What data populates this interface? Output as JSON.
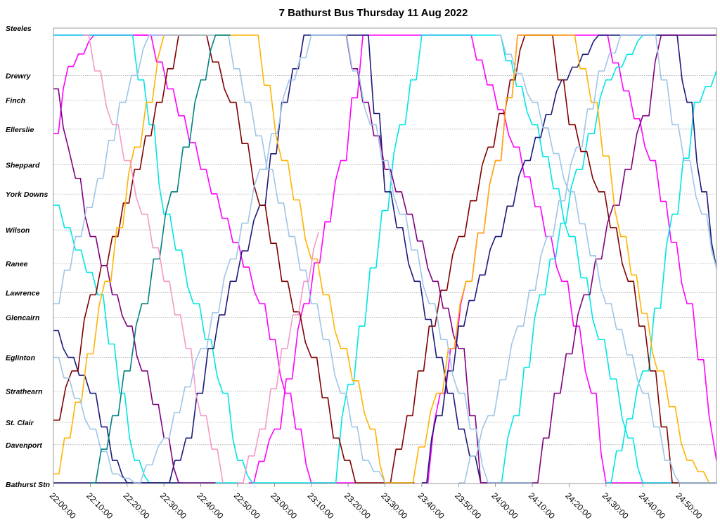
{
  "chart_data": {
    "type": "line",
    "title": "7 Bathurst Bus Thursday 11 Aug 2022",
    "xlabel": "",
    "ylabel": "",
    "x_unit": "minutes after 22:00",
    "xlim": [
      0,
      180
    ],
    "x_ticks": [
      {
        "value": 0,
        "label": "22:00:00"
      },
      {
        "value": 10,
        "label": "22:10:00"
      },
      {
        "value": 20,
        "label": "22:20:00"
      },
      {
        "value": 30,
        "label": "22:30:00"
      },
      {
        "value": 40,
        "label": "22:40:00"
      },
      {
        "value": 50,
        "label": "22:50:00"
      },
      {
        "value": 60,
        "label": "23:00:00"
      },
      {
        "value": 70,
        "label": "23:10:00"
      },
      {
        "value": 80,
        "label": "23:20:00"
      },
      {
        "value": 90,
        "label": "23:30:00"
      },
      {
        "value": 100,
        "label": "23:40:00"
      },
      {
        "value": 110,
        "label": "23:50:00"
      },
      {
        "value": 120,
        "label": "24:00:00"
      },
      {
        "value": 130,
        "label": "24:10:00"
      },
      {
        "value": 140,
        "label": "24:20:00"
      },
      {
        "value": 150,
        "label": "24:30:00"
      },
      {
        "value": 160,
        "label": "24:40:00"
      },
      {
        "value": 170,
        "label": "24:50:00"
      }
    ],
    "stops": [
      {
        "name": "Steeles",
        "pos": 100
      },
      {
        "name": "Drewry",
        "pos": 91
      },
      {
        "name": "Finch",
        "pos": 85.5
      },
      {
        "name": "Ellerslie",
        "pos": 79
      },
      {
        "name": "Sheppard",
        "pos": 71
      },
      {
        "name": "York Downs",
        "pos": 64.5
      },
      {
        "name": "Wilson",
        "pos": 56.5
      },
      {
        "name": "Ranee",
        "pos": 49
      },
      {
        "name": "Lawrence",
        "pos": 42.5
      },
      {
        "name": "Glencairn",
        "pos": 37
      },
      {
        "name": "Eglinton",
        "pos": 28
      },
      {
        "name": "Strathearn",
        "pos": 20.5
      },
      {
        "name": "St. Clair",
        "pos": 13.5
      },
      {
        "name": "Davenport",
        "pos": 8.5
      },
      {
        "name": "Bathurst Stn",
        "pos": 0
      }
    ],
    "ylim": [
      0,
      100
    ],
    "grid": true,
    "legend": "none",
    "series": [
      {
        "color": "#ff00ff",
        "values": [
          [
            0,
            78
          ],
          [
            4,
            93
          ],
          [
            11,
            100
          ],
          [
            38,
            100
          ]
        ]
      },
      {
        "color": "#ff00ff",
        "values": [
          [
            0,
            100
          ],
          [
            25,
            100
          ],
          [
            40,
            70
          ],
          [
            56,
            40
          ],
          [
            63,
            20
          ],
          [
            70,
            0
          ],
          [
            82,
            0
          ]
        ]
      },
      {
        "color": "#ff00ff",
        "values": [
          [
            53,
            0
          ],
          [
            60,
            12
          ],
          [
            68,
            40
          ],
          [
            78,
            72
          ],
          [
            84,
            100
          ],
          [
            112,
            100
          ],
          [
            125,
            75
          ],
          [
            138,
            45
          ],
          [
            146,
            20
          ],
          [
            150,
            0
          ],
          [
            168,
            0
          ]
        ]
      },
      {
        "color": "#ff00ff",
        "values": [
          [
            100,
            0
          ],
          [
            105,
            20
          ],
          [
            112,
            45
          ],
          [
            120,
            72
          ],
          [
            126,
            100
          ],
          [
            149,
            100
          ],
          [
            162,
            72
          ],
          [
            172,
            40
          ],
          [
            178,
            15
          ],
          [
            180,
            5
          ]
        ]
      },
      {
        "color": "#00e5e5",
        "values": [
          [
            0,
            100
          ],
          [
            20,
            100
          ],
          [
            26,
            80
          ],
          [
            30,
            60
          ],
          [
            38,
            40
          ],
          [
            46,
            20
          ],
          [
            50,
            5
          ],
          [
            54,
            0
          ],
          [
            75,
            0
          ],
          [
            80,
            22
          ],
          [
            86,
            48
          ],
          [
            94,
            80
          ],
          [
            100,
            100
          ],
          [
            120,
            100
          ],
          [
            130,
            80
          ],
          [
            140,
            55
          ],
          [
            148,
            32
          ],
          [
            156,
            10
          ],
          [
            160,
            0
          ],
          [
            180,
            0
          ]
        ]
      },
      {
        "color": "#00e5e5",
        "values": [
          [
            0,
            62
          ],
          [
            6,
            52
          ],
          [
            12,
            42
          ],
          [
            18,
            20
          ],
          [
            22,
            5
          ],
          [
            26,
            0
          ],
          [
            50,
            0
          ]
        ]
      },
      {
        "color": "#00e5e5",
        "values": [
          [
            120,
            0
          ],
          [
            125,
            15
          ],
          [
            132,
            42
          ],
          [
            142,
            70
          ],
          [
            150,
            90
          ],
          [
            160,
            100
          ],
          [
            180,
            100
          ]
        ]
      },
      {
        "color": "#00e5e5",
        "values": [
          [
            150,
            0
          ],
          [
            160,
            25
          ],
          [
            168,
            60
          ],
          [
            174,
            85
          ],
          [
            180,
            92
          ]
        ]
      },
      {
        "color": "#1a1a7a",
        "values": [
          [
            0,
            34
          ],
          [
            4,
            28
          ],
          [
            10,
            20
          ],
          [
            16,
            5
          ],
          [
            20,
            0
          ],
          [
            30,
            0
          ],
          [
            36,
            10
          ],
          [
            42,
            30
          ],
          [
            48,
            45
          ],
          [
            56,
            62
          ],
          [
            62,
            85
          ],
          [
            68,
            100
          ],
          [
            84,
            100
          ],
          [
            90,
            65
          ],
          [
            98,
            45
          ],
          [
            104,
            28
          ],
          [
            110,
            12
          ],
          [
            116,
            0
          ],
          [
            130,
            0
          ]
        ]
      },
      {
        "color": "#1a1a7a",
        "values": [
          [
            0,
            0
          ],
          [
            15,
            0
          ],
          [
            20,
            0
          ],
          [
            35,
            0
          ]
        ]
      },
      {
        "color": "#1a1a7a",
        "values": [
          [
            100,
            0
          ],
          [
            104,
            15
          ],
          [
            110,
            35
          ],
          [
            120,
            55
          ],
          [
            128,
            72
          ],
          [
            138,
            90
          ],
          [
            148,
            100
          ],
          [
            168,
            100
          ],
          [
            172,
            85
          ],
          [
            176,
            65
          ],
          [
            180,
            48
          ]
        ]
      },
      {
        "color": "#800000",
        "values": [
          [
            0,
            14
          ],
          [
            5,
            25
          ],
          [
            10,
            42
          ],
          [
            16,
            55
          ],
          [
            22,
            70
          ],
          [
            28,
            85
          ],
          [
            34,
            100
          ],
          [
            40,
            100
          ],
          [
            48,
            85
          ],
          [
            56,
            62
          ],
          [
            62,
            45
          ],
          [
            70,
            28
          ],
          [
            76,
            10
          ],
          [
            82,
            0
          ],
          [
            98,
            0
          ]
        ]
      },
      {
        "color": "#800000",
        "values": [
          [
            90,
            0
          ],
          [
            96,
            15
          ],
          [
            102,
            35
          ],
          [
            110,
            55
          ],
          [
            118,
            75
          ],
          [
            124,
            90
          ],
          [
            128,
            100
          ],
          [
            134,
            100
          ],
          [
            140,
            80
          ],
          [
            148,
            65
          ],
          [
            156,
            45
          ],
          [
            162,
            25
          ],
          [
            168,
            0
          ],
          [
            180,
            0
          ]
        ]
      },
      {
        "color": "#800080",
        "values": [
          [
            0,
            88
          ],
          [
            4,
            75
          ],
          [
            6,
            68
          ],
          [
            10,
            55
          ],
          [
            16,
            42
          ],
          [
            20,
            35
          ],
          [
            24,
            25
          ],
          [
            30,
            10
          ],
          [
            34,
            0
          ],
          [
            44,
            0
          ]
        ]
      },
      {
        "color": "#800080",
        "values": [
          [
            78,
            100
          ],
          [
            84,
            85
          ],
          [
            90,
            70
          ],
          [
            96,
            60
          ],
          [
            103,
            45
          ],
          [
            110,
            30
          ],
          [
            116,
            0
          ],
          [
            130,
            0
          ],
          [
            136,
            20
          ],
          [
            144,
            42
          ],
          [
            152,
            62
          ],
          [
            160,
            82
          ],
          [
            165,
            100
          ],
          [
            180,
            100
          ]
        ]
      },
      {
        "color": "#ffb300",
        "values": [
          [
            0,
            2
          ],
          [
            6,
            18
          ],
          [
            14,
            45
          ],
          [
            22,
            75
          ],
          [
            30,
            100
          ],
          [
            54,
            100
          ],
          [
            62,
            72
          ],
          [
            70,
            50
          ],
          [
            78,
            30
          ],
          [
            86,
            12
          ],
          [
            90,
            0
          ],
          [
            96,
            0
          ]
        ]
      },
      {
        "color": "#ffb300",
        "values": [
          [
            96,
            0
          ],
          [
            104,
            20
          ],
          [
            112,
            45
          ],
          [
            120,
            72
          ],
          [
            126,
            100
          ],
          [
            140,
            100
          ],
          [
            146,
            85
          ],
          [
            154,
            55
          ],
          [
            164,
            25
          ],
          [
            172,
            5
          ],
          [
            178,
            0
          ]
        ]
      },
      {
        "color": "#9ec5e8",
        "values": [
          [
            0,
            28
          ],
          [
            10,
            12
          ],
          [
            16,
            2
          ],
          [
            22,
            0
          ],
          [
            30,
            10
          ],
          [
            40,
            30
          ],
          [
            48,
            50
          ],
          [
            56,
            70
          ],
          [
            64,
            90
          ],
          [
            70,
            100
          ],
          [
            78,
            100
          ],
          [
            86,
            80
          ],
          [
            94,
            60
          ],
          [
            102,
            40
          ],
          [
            110,
            20
          ],
          [
            118,
            0
          ],
          [
            130,
            0
          ]
        ]
      },
      {
        "color": "#9ec5e8",
        "values": [
          [
            0,
            40
          ],
          [
            6,
            55
          ],
          [
            12,
            68
          ],
          [
            18,
            85
          ],
          [
            26,
            100
          ],
          [
            46,
            100
          ],
          [
            52,
            85
          ],
          [
            58,
            70
          ],
          [
            64,
            55
          ],
          [
            70,
            40
          ],
          [
            78,
            20
          ],
          [
            84,
            5
          ],
          [
            90,
            0
          ]
        ]
      },
      {
        "color": "#9ec5e8",
        "values": [
          [
            110,
            0
          ],
          [
            118,
            15
          ],
          [
            126,
            35
          ],
          [
            134,
            55
          ],
          [
            142,
            75
          ],
          [
            148,
            92
          ],
          [
            154,
            100
          ],
          [
            162,
            100
          ],
          [
            168,
            80
          ],
          [
            176,
            60
          ],
          [
            180,
            48
          ]
        ]
      },
      {
        "color": "#9ec5e8",
        "values": [
          [
            120,
            100
          ],
          [
            130,
            85
          ],
          [
            140,
            65
          ],
          [
            150,
            40
          ],
          [
            160,
            20
          ],
          [
            166,
            5
          ],
          [
            170,
            0
          ],
          [
            180,
            0
          ]
        ]
      },
      {
        "color": "#008080",
        "values": [
          [
            10,
            0
          ],
          [
            16,
            15
          ],
          [
            24,
            40
          ],
          [
            32,
            65
          ],
          [
            40,
            90
          ],
          [
            44,
            100
          ],
          [
            48,
            100
          ]
        ]
      },
      {
        "color": "#f49ac8",
        "values": [
          [
            8,
            100
          ],
          [
            16,
            80
          ],
          [
            24,
            60
          ],
          [
            30,
            45
          ],
          [
            36,
            30
          ],
          [
            40,
            15
          ],
          [
            46,
            0
          ]
        ]
      },
      {
        "color": "#f49ac8",
        "values": [
          [
            50,
            0
          ],
          [
            56,
            12
          ],
          [
            62,
            30
          ],
          [
            68,
            45
          ],
          [
            72,
            56
          ]
        ]
      }
    ]
  }
}
